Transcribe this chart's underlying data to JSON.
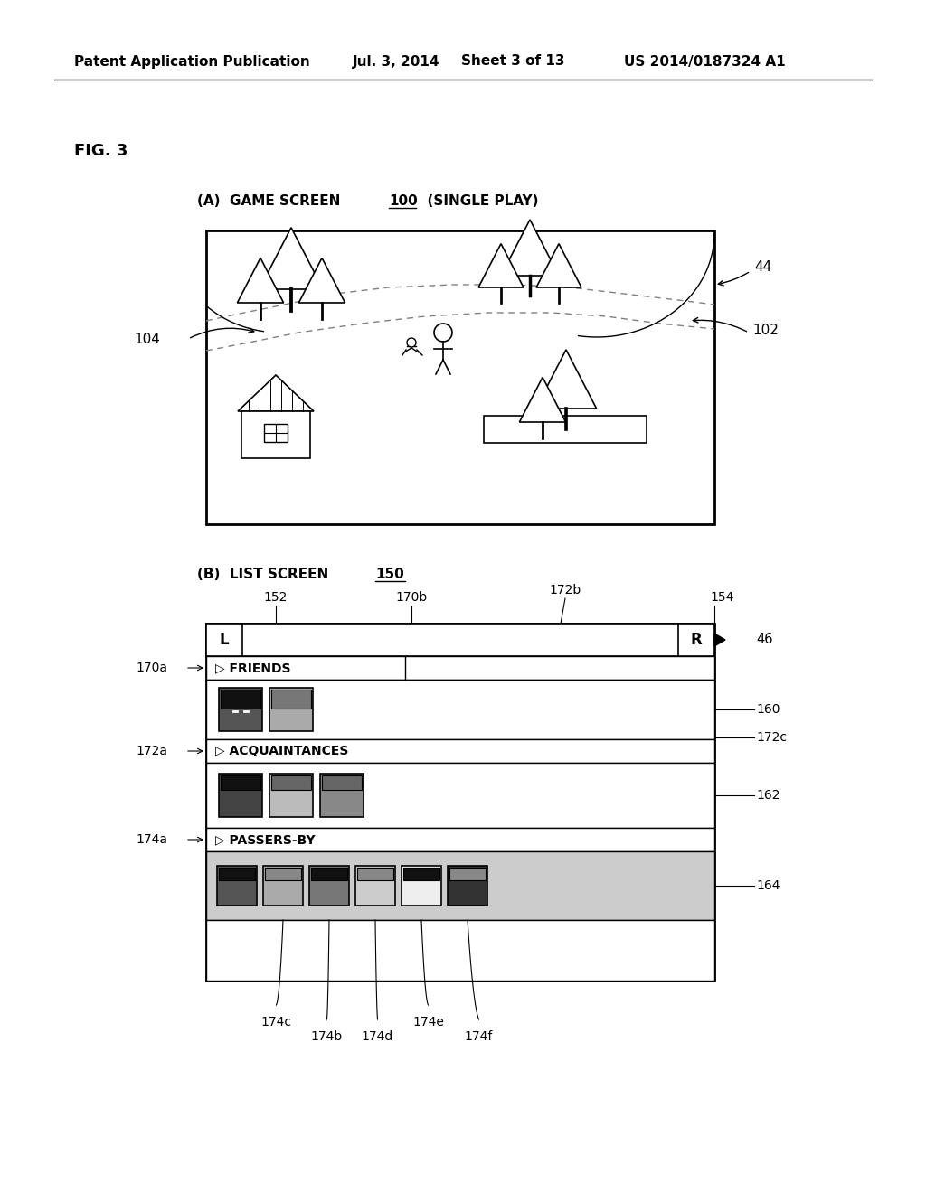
{
  "bg_color": "#ffffff",
  "header_text": "Patent Application Publication",
  "header_date": "Jul. 3, 2014",
  "header_sheet": "Sheet 3 of 13",
  "header_patent": "US 2014/0187324 A1",
  "fig_label": "FIG. 3",
  "section_a_label": "(A)  GAME SCREEN ",
  "section_a_ref": "100",
  "section_a_extra": "  (SINGLE PLAY)",
  "section_b_label": "(B)  LIST SCREEN ",
  "section_b_ref": "150"
}
